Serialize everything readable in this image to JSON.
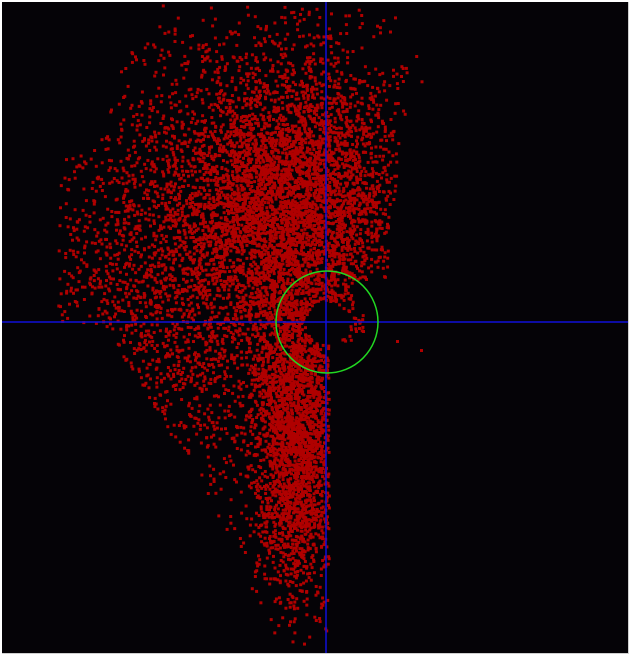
{
  "colors": {
    "background": "#050307",
    "points": "#b00000",
    "axes": "#1010d8",
    "circle": "#22d822"
  },
  "scatter": {
    "seed": 20240611,
    "count": 9000
  }
}
